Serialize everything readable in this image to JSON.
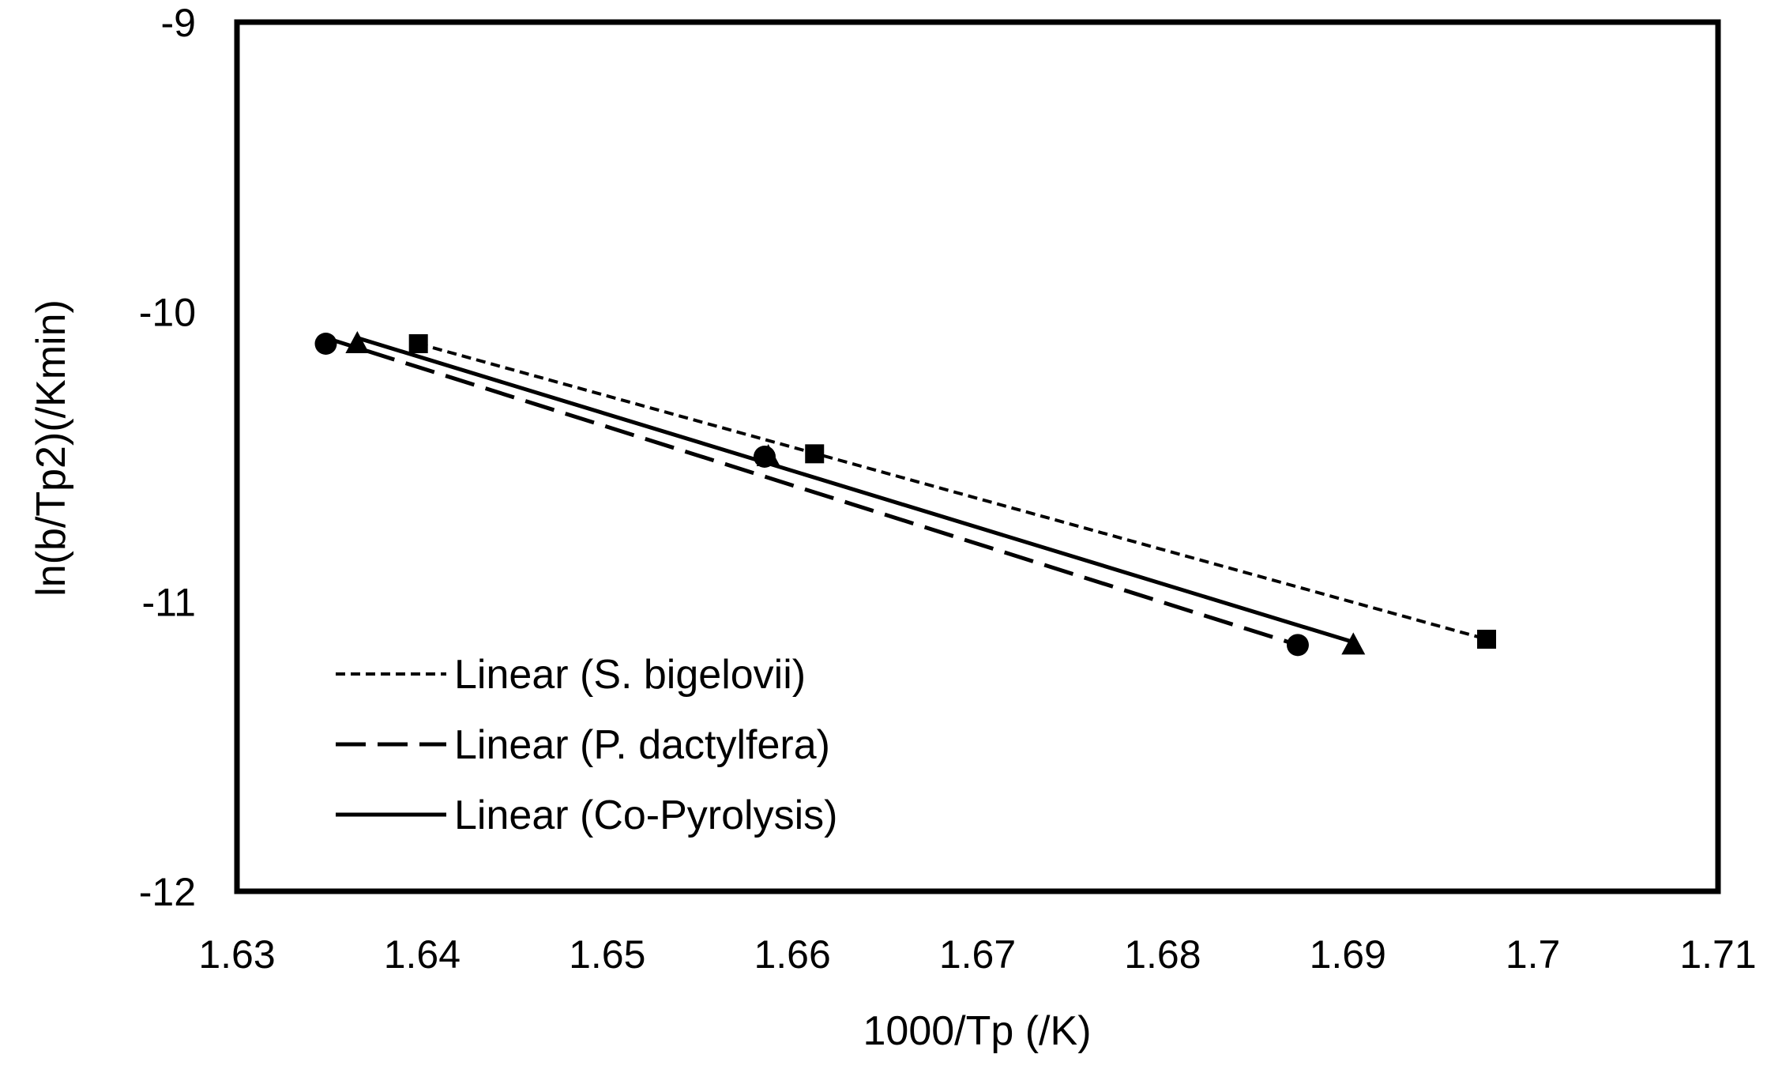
{
  "chart_data": {
    "type": "scatter",
    "title": "",
    "xlabel": "1000/Tp (/K)",
    "ylabel": "ln(b/Tp2)(/Kmin)",
    "xlim": [
      1.63,
      1.71
    ],
    "ylim": [
      -12,
      -9
    ],
    "x_ticks": [
      1.63,
      1.64,
      1.65,
      1.66,
      1.67,
      1.68,
      1.69,
      1.7,
      1.71
    ],
    "y_ticks": [
      -9,
      -10,
      -11,
      -12
    ],
    "x_tick_labels": [
      "1.63",
      "1.64",
      "1.65",
      "1.66",
      "1.67",
      "1.68",
      "1.69",
      "1.7",
      "1.71"
    ],
    "y_tick_labels": [
      "-9",
      "-10",
      "-11",
      "-12"
    ],
    "grid": false,
    "legend_position": "bottom-left",
    "series": [
      {
        "name": "S. bigelovii",
        "marker": "square",
        "x": [
          1.6398,
          1.6612,
          1.6975
        ],
        "y": [
          -10.11,
          -10.49,
          -11.13
        ],
        "trendline": {
          "label": "Linear (S. bigelovii)",
          "style": "dotted",
          "x": [
            1.6398,
            1.6975
          ],
          "y": [
            -10.11,
            -11.13
          ]
        }
      },
      {
        "name": "P. dactylfera",
        "marker": "circle",
        "x": [
          1.6348,
          1.6585,
          1.6873
        ],
        "y": [
          -10.11,
          -10.5,
          -11.15
        ],
        "trendline": {
          "label": "Linear (P. dactylfera)",
          "style": "dashed",
          "x": [
            1.6348,
            1.6873
          ],
          "y": [
            -10.09,
            -11.15
          ]
        }
      },
      {
        "name": "Co-Pyrolysis",
        "marker": "triangle",
        "x": [
          1.6365,
          1.6587,
          1.6903
        ],
        "y": [
          -10.11,
          -10.5,
          -11.15
        ],
        "trendline": {
          "label": "Linear (Co-Pyrolysis)",
          "style": "solid",
          "x": [
            1.6365,
            1.6903
          ],
          "y": [
            -10.09,
            -11.14
          ]
        }
      }
    ],
    "legend": [
      {
        "label": "Linear (S. bigelovii)",
        "style": "dotted"
      },
      {
        "label": "Linear (P. dactylfera)",
        "style": "dashed"
      },
      {
        "label": "Linear (Co-Pyrolysis)",
        "style": "solid"
      }
    ],
    "colors": {
      "line": "#000000",
      "marker_fill": "#000000",
      "background": "#ffffff"
    }
  }
}
